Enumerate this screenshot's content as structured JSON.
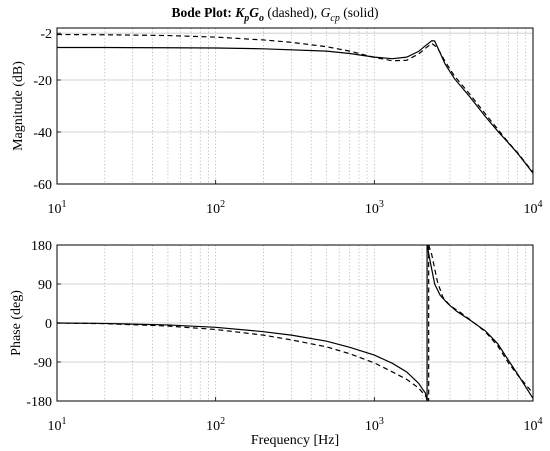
{
  "title": {
    "prefix": "Bode Plot: ",
    "k": "K",
    "k_sub": "p",
    "g": "G",
    "g_sub": "o",
    "dashed": " (dashed), ",
    "gc": "G",
    "gc_sub": "cp",
    "solid": " (solid)"
  },
  "chart_data": [
    {
      "type": "line",
      "xscale": "log",
      "xlim": [
        10,
        10000
      ],
      "ylim": [
        -60,
        0
      ],
      "ylabel": "Magnitude (dB)",
      "xlabel": "",
      "grid": true,
      "x_ticks": [
        {
          "base": "10",
          "exp": "1",
          "v": 10
        },
        {
          "base": "10",
          "exp": "2",
          "v": 100
        },
        {
          "base": "10",
          "exp": "3",
          "v": 1000
        },
        {
          "base": "10",
          "exp": "4",
          "v": 10000
        }
      ],
      "y_ticks": [
        {
          "label": "-2",
          "v": -2
        },
        {
          "label": "-20",
          "v": -20
        },
        {
          "label": "-40",
          "v": -40
        },
        {
          "label": "-60",
          "v": -60
        }
      ],
      "series": [
        {
          "style": "dashed",
          "x": [
            10,
            20,
            50,
            100,
            200,
            300,
            500,
            700,
            1000,
            1300,
            1600,
            1900,
            2100,
            2300,
            2500,
            2800,
            3200,
            4000,
            5000,
            6000,
            7000,
            8000,
            10000
          ],
          "y": [
            -2.5,
            -2.6,
            -2.9,
            -3.5,
            -4.6,
            -5.5,
            -7.2,
            -8.9,
            -11.3,
            -12.6,
            -12.4,
            -10.0,
            -7.8,
            -5.9,
            -7.6,
            -13,
            -18.5,
            -25.5,
            -33,
            -39,
            -44,
            -48,
            -55.5
          ]
        },
        {
          "style": "solid",
          "x": [
            10,
            20,
            50,
            100,
            200,
            500,
            700,
            1000,
            1300,
            1600,
            1900,
            2100,
            2300,
            2400,
            2600,
            2800,
            3200,
            4000,
            5000,
            6000,
            7000,
            8000,
            10000
          ],
          "y": [
            -7.5,
            -7.5,
            -7.6,
            -7.7,
            -8.0,
            -8.9,
            -9.8,
            -11.2,
            -11.8,
            -11.2,
            -9.0,
            -6.8,
            -4.9,
            -5.0,
            -9.6,
            -14,
            -19.5,
            -26.5,
            -34,
            -39.7,
            -44.2,
            -48.2,
            -55.8
          ]
        }
      ]
    },
    {
      "type": "line",
      "xscale": "log",
      "xlim": [
        10,
        10000
      ],
      "ylim": [
        -180,
        180
      ],
      "ylabel": "Phase (deg)",
      "xlabel": "Frequency [Hz]",
      "grid": true,
      "x_ticks": [
        {
          "base": "10",
          "exp": "1",
          "v": 10
        },
        {
          "base": "10",
          "exp": "2",
          "v": 100
        },
        {
          "base": "10",
          "exp": "3",
          "v": 1000
        },
        {
          "base": "10",
          "exp": "4",
          "v": 10000
        }
      ],
      "y_ticks": [
        {
          "label": "180",
          "v": 180
        },
        {
          "label": "90",
          "v": 90
        },
        {
          "label": "0",
          "v": 0
        },
        {
          "label": "-90",
          "v": -90
        },
        {
          "label": "-180",
          "v": -180
        }
      ],
      "series": [
        {
          "style": "dashed",
          "x": [
            10,
            20,
            50,
            100,
            200,
            300,
            500,
            700,
            1000,
            1300,
            1600,
            1900,
            2100,
            2200,
            2200,
            2300,
            2500,
            2700,
            3000,
            3500,
            4000,
            5000,
            6000,
            7000,
            8000,
            10000
          ],
          "y": [
            0,
            -1.5,
            -7,
            -15,
            -28,
            -39,
            -55,
            -71,
            -92,
            -113,
            -130,
            -150,
            -168,
            -180,
            180,
            158,
            95,
            60,
            40,
            24,
            8,
            -20,
            -53,
            -92,
            -120,
            -162
          ]
        },
        {
          "style": "solid",
          "x": [
            10,
            20,
            50,
            100,
            200,
            300,
            500,
            700,
            1000,
            1300,
            1600,
            1900,
            2100,
            2150,
            2150,
            2250,
            2400,
            2600,
            2900,
            3300,
            4000,
            5000,
            6000,
            7000,
            8000,
            10000
          ],
          "y": [
            0,
            -1,
            -4.5,
            -10,
            -20,
            -28,
            -42,
            -56,
            -74,
            -93,
            -113,
            -139,
            -162,
            -180,
            180,
            142,
            90,
            64,
            45,
            27,
            7,
            -18,
            -48,
            -86,
            -118,
            -174
          ]
        }
      ]
    }
  ]
}
